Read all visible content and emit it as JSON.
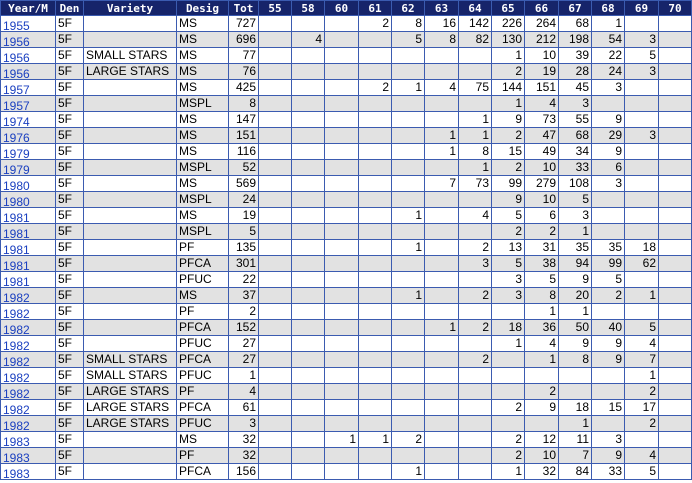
{
  "table": {
    "header": [
      "Year/M",
      "Den",
      "Variety",
      "Desig",
      "Tot",
      "55",
      "58",
      "60",
      "61",
      "62",
      "63",
      "64",
      "65",
      "66",
      "67",
      "68",
      "69",
      "70"
    ],
    "rows": [
      [
        1955,
        "5F",
        null,
        "MS",
        727,
        null,
        null,
        null,
        2,
        8,
        16,
        142,
        226,
        264,
        68,
        1,
        null,
        null
      ],
      [
        1956,
        "5F",
        null,
        "MS",
        696,
        null,
        4,
        null,
        null,
        5,
        8,
        82,
        130,
        212,
        198,
        54,
        3,
        null
      ],
      [
        1956,
        "5F",
        "SMALL STARS",
        "MS",
        77,
        null,
        null,
        null,
        null,
        null,
        null,
        null,
        1,
        10,
        39,
        22,
        5,
        null
      ],
      [
        1956,
        "5F",
        "LARGE STARS",
        "MS",
        76,
        null,
        null,
        null,
        null,
        null,
        null,
        null,
        2,
        19,
        28,
        24,
        3,
        null
      ],
      [
        1957,
        "5F",
        null,
        "MS",
        425,
        null,
        null,
        null,
        2,
        1,
        4,
        75,
        144,
        151,
        45,
        3,
        null,
        null
      ],
      [
        1957,
        "5F",
        null,
        "MSPL",
        8,
        null,
        null,
        null,
        null,
        null,
        null,
        null,
        1,
        4,
        3,
        null,
        null,
        null
      ],
      [
        1974,
        "5F",
        null,
        "MS",
        147,
        null,
        null,
        null,
        null,
        null,
        null,
        1,
        9,
        73,
        55,
        9,
        null,
        null
      ],
      [
        1976,
        "5F",
        null,
        "MS",
        151,
        null,
        null,
        null,
        null,
        null,
        1,
        1,
        2,
        47,
        68,
        29,
        3,
        null
      ],
      [
        1979,
        "5F",
        null,
        "MS",
        116,
        null,
        null,
        null,
        null,
        null,
        1,
        8,
        15,
        49,
        34,
        9,
        null,
        null
      ],
      [
        1979,
        "5F",
        null,
        "MSPL",
        52,
        null,
        null,
        null,
        null,
        null,
        null,
        1,
        2,
        10,
        33,
        6,
        null,
        null
      ],
      [
        1980,
        "5F",
        null,
        "MS",
        569,
        null,
        null,
        null,
        null,
        null,
        7,
        73,
        99,
        279,
        108,
        3,
        null,
        null
      ],
      [
        1980,
        "5F",
        null,
        "MSPL",
        24,
        null,
        null,
        null,
        null,
        null,
        null,
        null,
        9,
        10,
        5,
        null,
        null,
        null
      ],
      [
        1981,
        "5F",
        null,
        "MS",
        19,
        null,
        null,
        null,
        null,
        1,
        null,
        4,
        5,
        6,
        3,
        null,
        null,
        null
      ],
      [
        1981,
        "5F",
        null,
        "MSPL",
        5,
        null,
        null,
        null,
        null,
        null,
        null,
        null,
        2,
        2,
        1,
        null,
        null,
        null
      ],
      [
        1981,
        "5F",
        null,
        "PF",
        135,
        null,
        null,
        null,
        null,
        1,
        null,
        2,
        13,
        31,
        35,
        35,
        18,
        null
      ],
      [
        1981,
        "5F",
        null,
        "PFCA",
        301,
        null,
        null,
        null,
        null,
        null,
        null,
        3,
        5,
        38,
        94,
        99,
        62,
        null
      ],
      [
        1981,
        "5F",
        null,
        "PFUC",
        22,
        null,
        null,
        null,
        null,
        null,
        null,
        null,
        3,
        5,
        9,
        5,
        null,
        null
      ],
      [
        1982,
        "5F",
        null,
        "MS",
        37,
        null,
        null,
        null,
        null,
        1,
        null,
        2,
        3,
        8,
        20,
        2,
        1,
        null
      ],
      [
        1982,
        "5F",
        null,
        "PF",
        2,
        null,
        null,
        null,
        null,
        null,
        null,
        null,
        null,
        1,
        1,
        null,
        null,
        null
      ],
      [
        1982,
        "5F",
        null,
        "PFCA",
        152,
        null,
        null,
        null,
        null,
        null,
        1,
        2,
        18,
        36,
        50,
        40,
        5,
        null
      ],
      [
        1982,
        "5F",
        null,
        "PFUC",
        27,
        null,
        null,
        null,
        null,
        null,
        null,
        null,
        1,
        4,
        9,
        9,
        4,
        null
      ],
      [
        1982,
        "5F",
        "SMALL STARS",
        "PFCA",
        27,
        null,
        null,
        null,
        null,
        null,
        null,
        2,
        null,
        1,
        8,
        9,
        7,
        null
      ],
      [
        1982,
        "5F",
        "SMALL STARS",
        "PFUC",
        1,
        null,
        null,
        null,
        null,
        null,
        null,
        null,
        null,
        null,
        null,
        null,
        1,
        null
      ],
      [
        1982,
        "5F",
        "LARGE STARS",
        "PF",
        4,
        null,
        null,
        null,
        null,
        null,
        null,
        null,
        null,
        2,
        null,
        null,
        2,
        null
      ],
      [
        1982,
        "5F",
        "LARGE STARS",
        "PFCA",
        61,
        null,
        null,
        null,
        null,
        null,
        null,
        null,
        2,
        9,
        18,
        15,
        17,
        null
      ],
      [
        1982,
        "5F",
        "LARGE STARS",
        "PFUC",
        3,
        null,
        null,
        null,
        null,
        null,
        null,
        null,
        null,
        null,
        1,
        null,
        2,
        null
      ],
      [
        1983,
        "5F",
        null,
        "MS",
        32,
        null,
        null,
        1,
        1,
        2,
        null,
        null,
        2,
        12,
        11,
        3,
        null,
        null
      ],
      [
        1983,
        "5F",
        null,
        "PF",
        32,
        null,
        null,
        null,
        null,
        null,
        null,
        null,
        2,
        10,
        7,
        9,
        4,
        null
      ],
      [
        1983,
        "5F",
        null,
        "PFCA",
        156,
        null,
        null,
        null,
        null,
        1,
        null,
        null,
        1,
        32,
        84,
        33,
        5,
        null
      ]
    ]
  }
}
